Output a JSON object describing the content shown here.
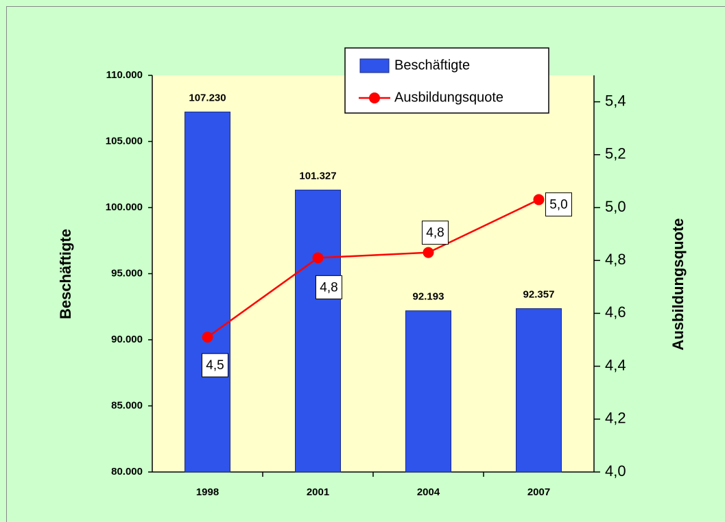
{
  "chart_data": {
    "type": "bar",
    "categories": [
      "1998",
      "2001",
      "2004",
      "2007"
    ],
    "ylabel": "Beschäftigte",
    "y2label": "Ausbildungsquote",
    "ylim": [
      80000,
      110000
    ],
    "yticks": [
      {
        "value": 80000,
        "label": "80.000"
      },
      {
        "value": 85000,
        "label": "85.000"
      },
      {
        "value": 90000,
        "label": "90.000"
      },
      {
        "value": 95000,
        "label": "95.000"
      },
      {
        "value": 100000,
        "label": "100.000"
      },
      {
        "value": 105000,
        "label": "105.000"
      },
      {
        "value": 110000,
        "label": "110.000"
      }
    ],
    "y2lim": [
      4.0,
      5.5
    ],
    "y2ticks": [
      {
        "value": 4.0,
        "label": "4,0"
      },
      {
        "value": 4.2,
        "label": "4,2"
      },
      {
        "value": 4.4,
        "label": "4,4"
      },
      {
        "value": 4.6,
        "label": "4,6"
      },
      {
        "value": 4.8,
        "label": "4,8"
      },
      {
        "value": 5.0,
        "label": "5,0"
      },
      {
        "value": 5.2,
        "label": "5,2"
      },
      {
        "value": 5.4,
        "label": "5,4"
      }
    ],
    "series": [
      {
        "name": "Beschäftigte",
        "type": "bar",
        "color": "#2f54eb",
        "values": [
          107230,
          101327,
          92193,
          92357
        ],
        "value_labels": [
          "107.230",
          "101.327",
          "92.193",
          "92.357"
        ]
      },
      {
        "name": "Ausbildungsquote",
        "type": "line",
        "axis": "y2",
        "color": "#ff0000",
        "values": [
          4.51,
          4.81,
          4.83,
          5.03
        ],
        "value_labels": [
          "4,5",
          "4,8",
          "4,8",
          "5,0"
        ]
      }
    ],
    "legend": "top-right"
  }
}
